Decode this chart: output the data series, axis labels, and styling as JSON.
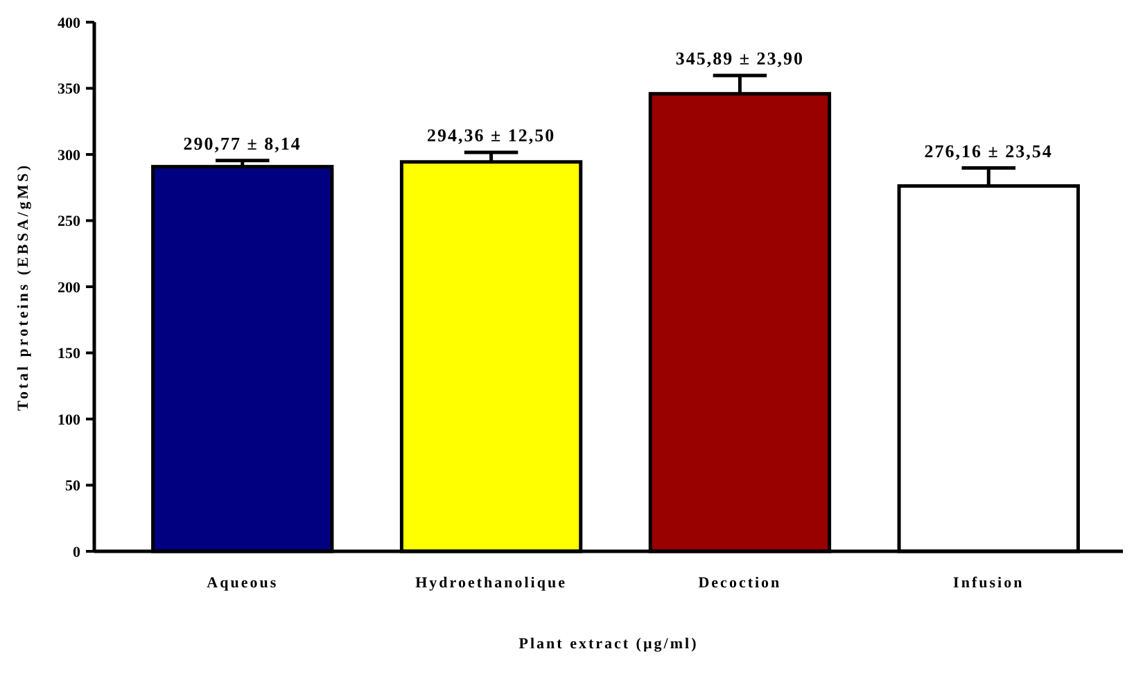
{
  "chart_data": {
    "type": "bar",
    "xlabel": "Plant extract (µg/ml)",
    "ylabel": "Total proteins (EBSA/gMS)",
    "categories": [
      "Aqueous",
      "Hydroethanolique",
      "Decoction",
      "Infusion"
    ],
    "values": [
      290.77,
      294.36,
      345.89,
      276.16
    ],
    "colors": [
      "#000080",
      "#ffff00",
      "#990000",
      "#ffffff"
    ],
    "errors": [
      4.7,
      7.2,
      13.8,
      13.6
    ],
    "value_labels": [
      "290,77 ± 8,14",
      "294,36 ± 12,50",
      "345,89 ± 23,90",
      "276,16 ± 23,54"
    ],
    "ylim": [
      0,
      400
    ],
    "yticks": [
      0,
      50,
      100,
      150,
      200,
      250,
      300,
      350,
      400
    ],
    "grid": false
  }
}
